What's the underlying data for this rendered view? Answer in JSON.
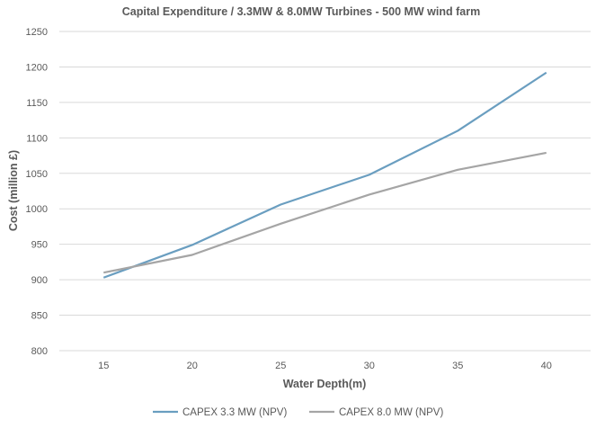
{
  "chart_data": {
    "type": "line",
    "title": "Capital Expenditure / 3.3MW & 8.0MW Turbines - 500 MW wind farm",
    "xlabel": "Water Depth(m)",
    "ylabel": "Cost (million £)",
    "categories": [
      "15",
      "20",
      "25",
      "30",
      "35",
      "40"
    ],
    "ylim": [
      800,
      1250
    ],
    "yticks": [
      "800",
      "850",
      "900",
      "950",
      "1000",
      "1050",
      "1100",
      "1150",
      "1200",
      "1250"
    ],
    "grid": true,
    "legend_position": "bottom",
    "series": [
      {
        "name": "CAPEX 3.3 MW (NPV)",
        "color": "#6a9ec0",
        "values": [
          903,
          949,
          1006,
          1048,
          1110,
          1192
        ]
      },
      {
        "name": "CAPEX 8.0 MW (NPV)",
        "color": "#a5a5a5",
        "values": [
          910,
          935,
          979,
          1020,
          1055,
          1079
        ]
      }
    ]
  }
}
